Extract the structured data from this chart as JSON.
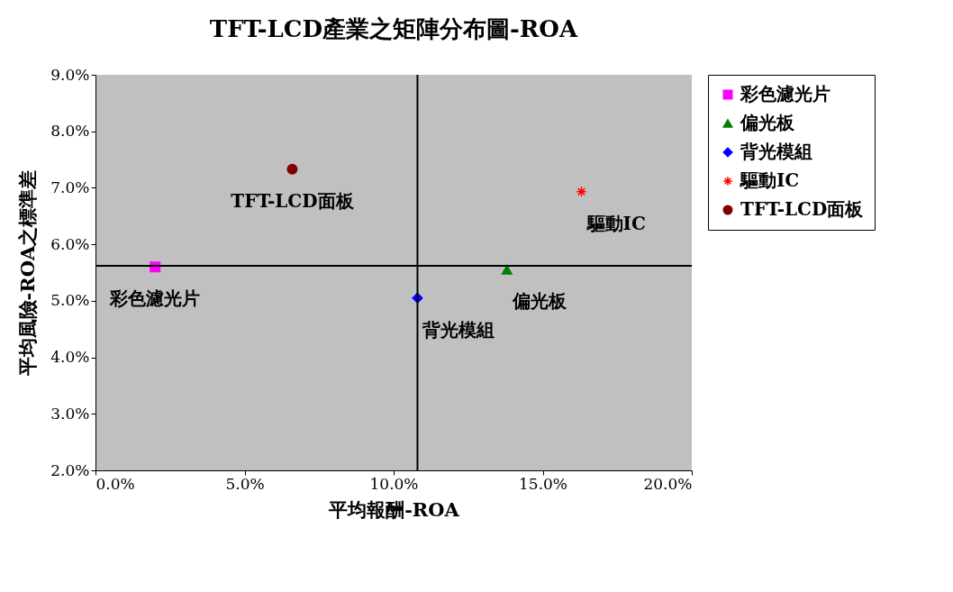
{
  "chart_data": {
    "type": "scatter",
    "title": "TFT-LCD產業之矩陣分布圖-ROA",
    "xlabel": "平均報酬-ROA",
    "ylabel": "平均風險-ROA之標準差",
    "series": [
      {
        "name": "彩色濾光片",
        "color": "#ff00ff",
        "marker": "square",
        "x": [
          2.0
        ],
        "values": [
          5.6
        ]
      },
      {
        "name": "偏光板",
        "color": "#008000",
        "marker": "triangle",
        "x": [
          13.8
        ],
        "values": [
          5.55
        ]
      },
      {
        "name": "背光模組",
        "color": "#0000ff",
        "marker": "diamond",
        "x": [
          10.8
        ],
        "values": [
          5.05
        ]
      },
      {
        "name": "驅動IC",
        "color": "#ff0000",
        "marker": "cross",
        "x": [
          16.3
        ],
        "values": [
          6.93
        ]
      },
      {
        "name": "TFT-LCD面板",
        "color": "#800000",
        "marker": "circle",
        "x": [
          6.6
        ],
        "values": [
          7.33
        ]
      }
    ],
    "xlim": [
      0,
      20
    ],
    "ylim": [
      2,
      9
    ],
    "xticks": [
      {
        "value": 0,
        "label": "0.0%"
      },
      {
        "value": 5,
        "label": "5.0%"
      },
      {
        "value": 10,
        "label": "10.0%"
      },
      {
        "value": 15,
        "label": "15.0%"
      },
      {
        "value": 20,
        "label": "20.0%"
      }
    ],
    "yticks": [
      {
        "value": 2,
        "label": "2.0%"
      },
      {
        "value": 3,
        "label": "3.0%"
      },
      {
        "value": 4,
        "label": "4.0%"
      },
      {
        "value": 5,
        "label": "5.0%"
      },
      {
        "value": 6,
        "label": "6.0%"
      },
      {
        "value": 7,
        "label": "7.0%"
      },
      {
        "value": 8,
        "label": "8.0%"
      },
      {
        "value": 9,
        "label": "9.0%"
      }
    ],
    "ref_lines": [
      {
        "axis": "x",
        "value": 10.8,
        "color": "#000000"
      },
      {
        "axis": "y",
        "value": 5.62,
        "color": "#000000"
      }
    ],
    "grid": false,
    "legend": "right"
  }
}
